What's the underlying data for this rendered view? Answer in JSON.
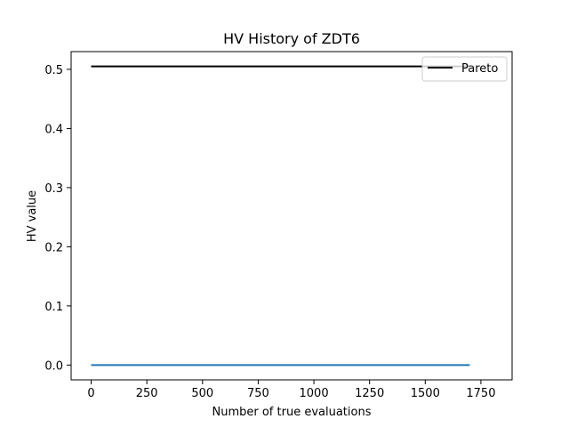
{
  "chart_data": {
    "type": "line",
    "title": "HV History of ZDT6",
    "xlabel": "Number of true evaluations",
    "ylabel": "HV value",
    "xlim": [
      -90,
      1890
    ],
    "ylim": [
      -0.025,
      0.53
    ],
    "xticks": [
      0,
      250,
      500,
      750,
      1000,
      1250,
      1500,
      1750
    ],
    "xtick_labels": [
      "0",
      "250",
      "500",
      "750",
      "1000",
      "1250",
      "1500",
      "1750"
    ],
    "yticks": [
      0.0,
      0.1,
      0.2,
      0.3,
      0.4,
      0.5
    ],
    "ytick_labels": [
      "0.0",
      "0.1",
      "0.2",
      "0.3",
      "0.4",
      "0.5"
    ],
    "grid": false,
    "legend_position": "upper right",
    "series": [
      {
        "name": "Pareto",
        "color": "#000000",
        "x": [
          0,
          1700
        ],
        "y": [
          0.505,
          0.505
        ]
      },
      {
        "color": "#1f77b4",
        "x": [
          0,
          1700
        ],
        "y": [
          0.0,
          0.0
        ]
      }
    ]
  }
}
